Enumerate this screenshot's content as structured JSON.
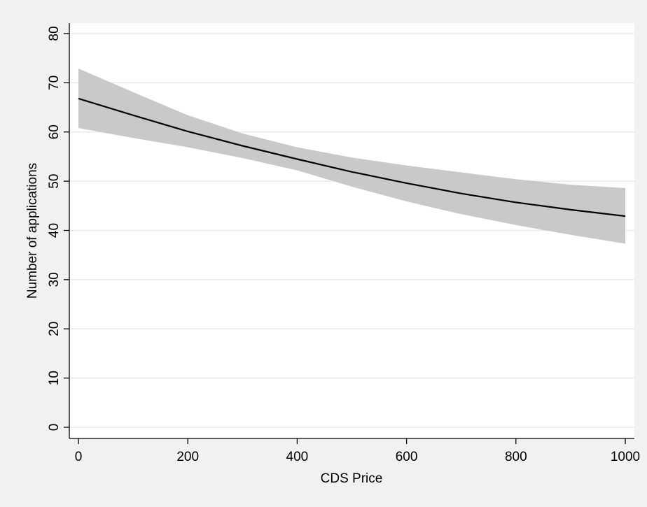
{
  "chart_data": {
    "type": "line",
    "title": "",
    "xlabel": "CDS Price",
    "ylabel": "Number of applications",
    "xlim": [
      0,
      1000
    ],
    "ylim": [
      0,
      80
    ],
    "xticks": [
      0,
      200,
      400,
      600,
      800,
      1000
    ],
    "yticks": [
      0,
      10,
      20,
      30,
      40,
      50,
      60,
      70,
      80
    ],
    "grid": true,
    "legend": "none",
    "series": [
      {
        "x": [
          0,
          100,
          200,
          300,
          400,
          500,
          600,
          700,
          800,
          900,
          1000
        ],
        "y": [
          66.8,
          63.4,
          60.1,
          57.2,
          54.5,
          51.9,
          49.6,
          47.5,
          45.7,
          44.2,
          42.9
        ],
        "ci_lower": [
          60.8,
          58.8,
          56.9,
          54.7,
          52.2,
          48.9,
          45.9,
          43.3,
          41.1,
          39.1,
          37.3
        ],
        "ci_upper": [
          72.9,
          68.1,
          63.4,
          59.7,
          56.9,
          54.8,
          53.2,
          51.8,
          50.4,
          49.3,
          48.6
        ]
      }
    ],
    "colors": {
      "line": "#000000",
      "band": "#c9c9c9",
      "plot_background": "#ffffff",
      "outer_background": "#f1f1f1",
      "grid": "#eaeaea"
    }
  }
}
